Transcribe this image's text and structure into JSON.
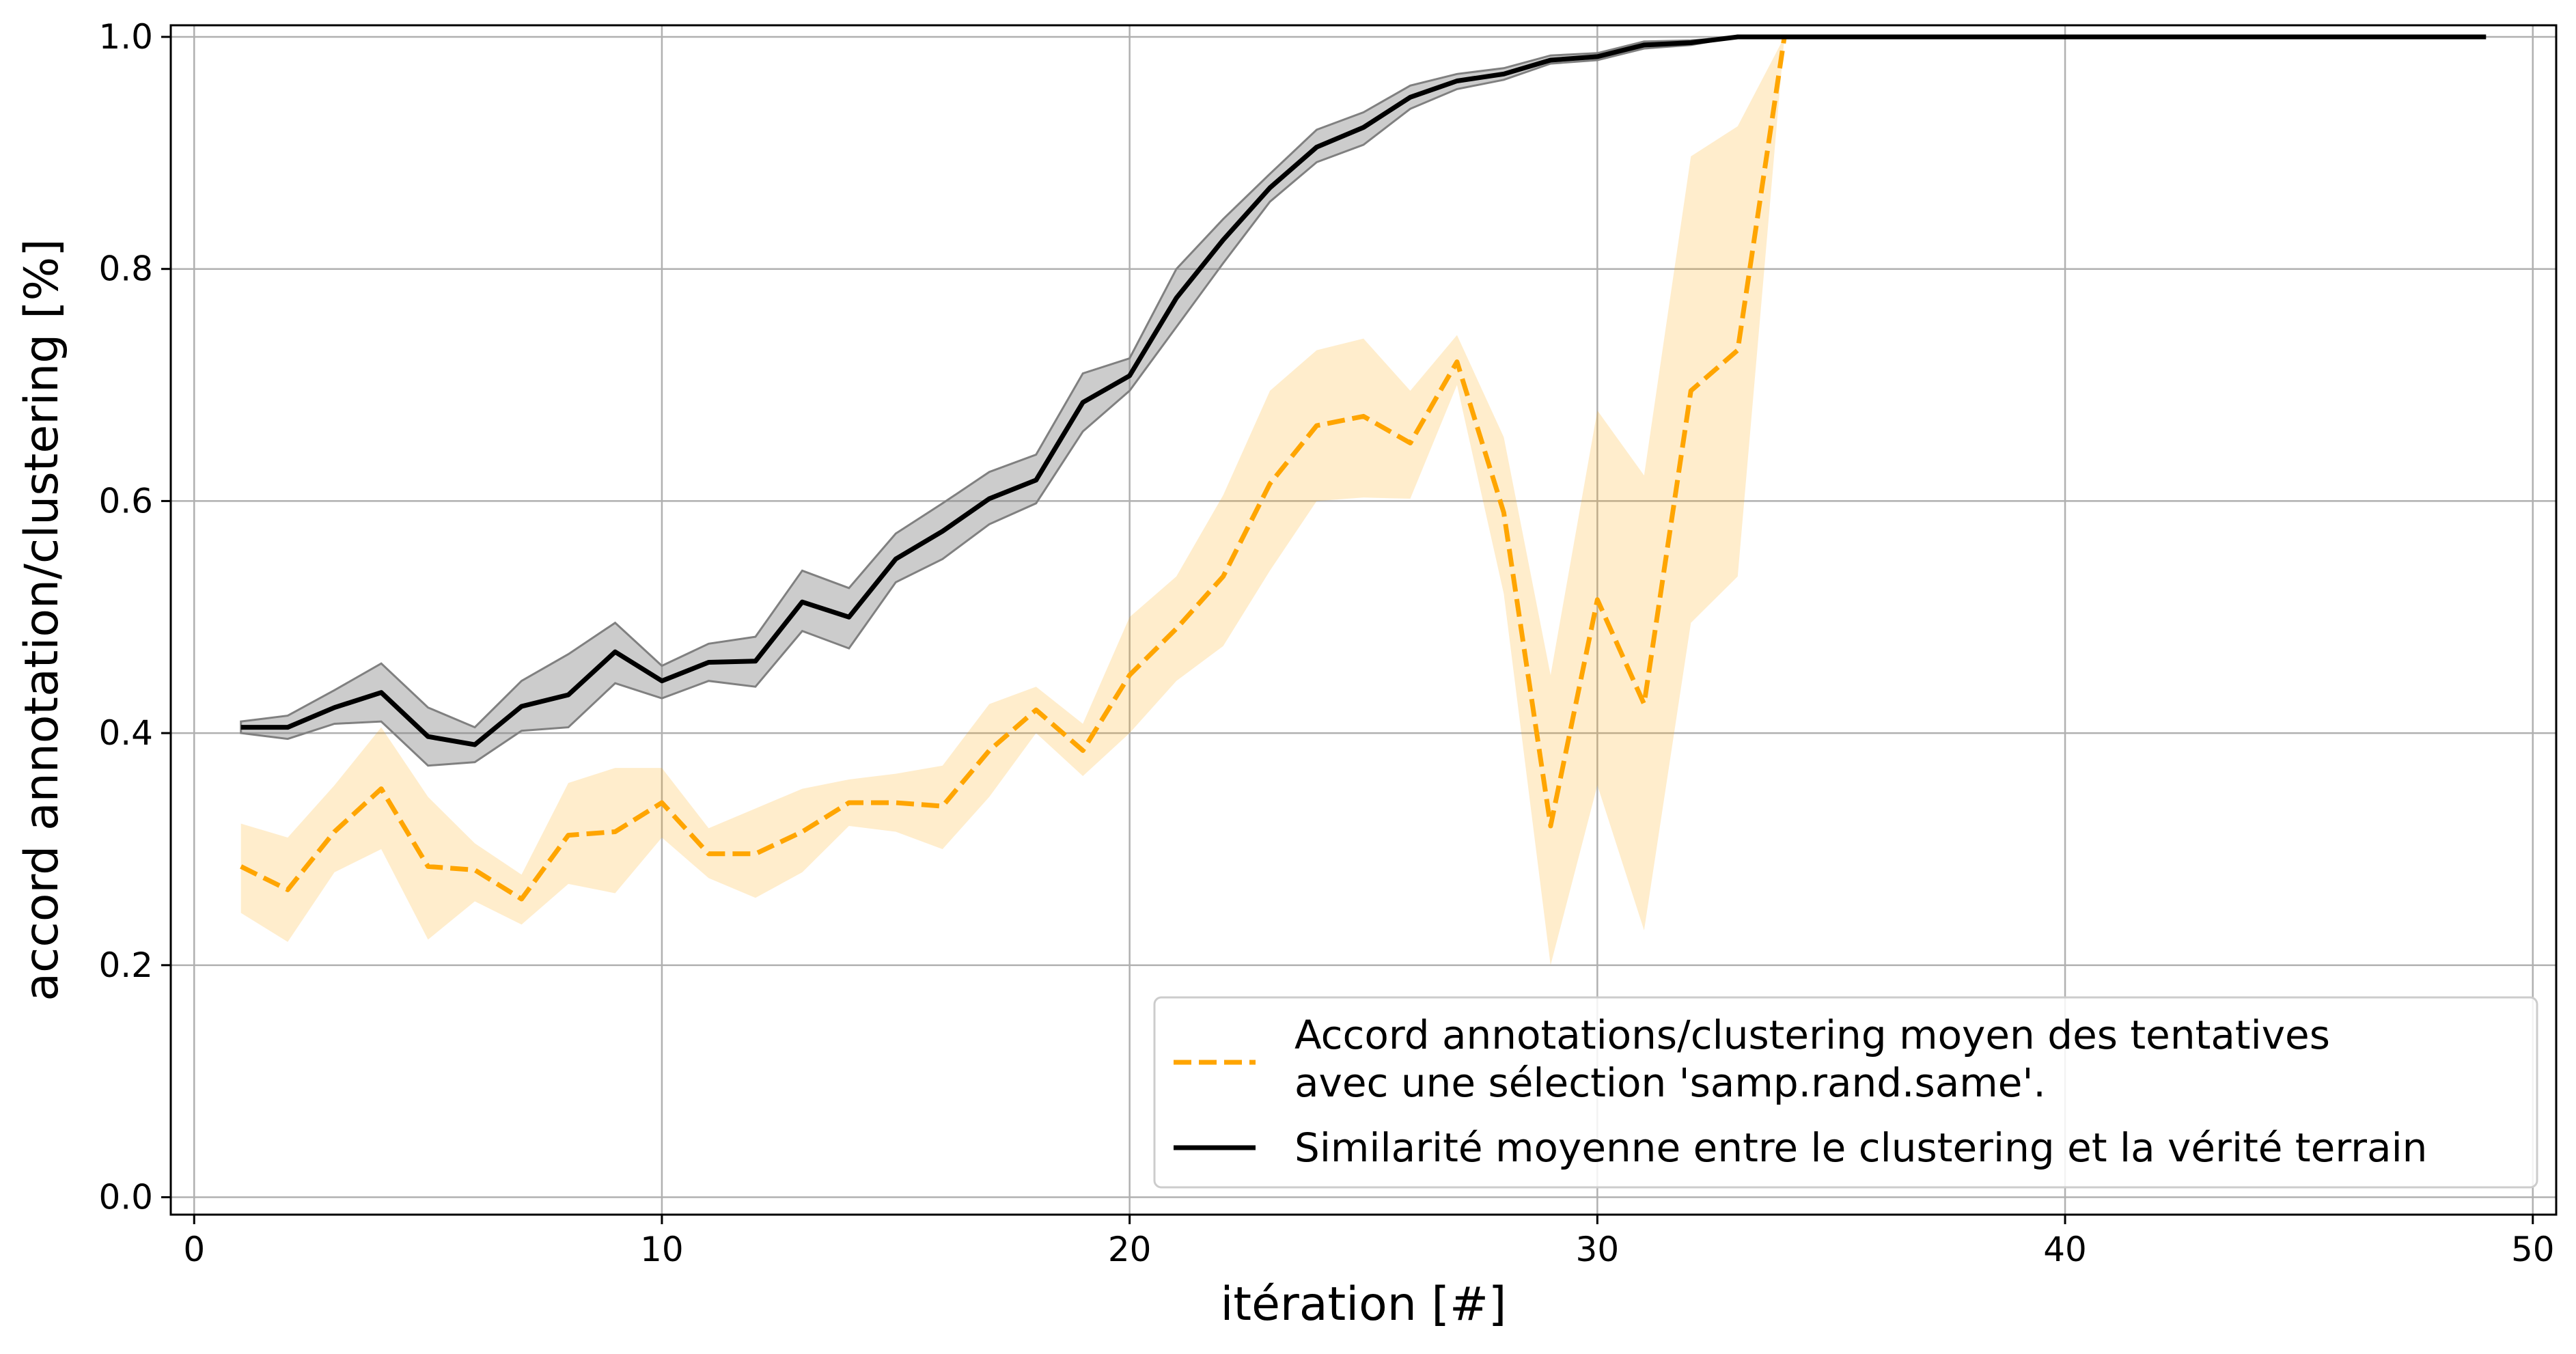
{
  "chart_data": {
    "type": "line",
    "title": "",
    "xlabel": "itération [#]",
    "ylabel": "accord annotation/clustering [%]",
    "xlim": [
      -0.5,
      50.5
    ],
    "ylim": [
      -0.015,
      1.01
    ],
    "xticks": [
      0,
      10,
      20,
      30,
      40,
      50
    ],
    "xtick_labels": [
      "0",
      "10",
      "20",
      "30",
      "40",
      "50"
    ],
    "yticks": [
      0.0,
      0.2,
      0.4,
      0.6,
      0.8,
      1.0
    ],
    "ytick_labels": [
      "0.0",
      "0.2",
      "0.4",
      "0.6",
      "0.8",
      "1.0"
    ],
    "grid": true,
    "legend_position": "bottom-right",
    "series": [
      {
        "name": "Accord annotations/clustering moyen des tentatives\navec une sélection 'samp.rand.same'.",
        "color": "#ffa500",
        "band_color": "#ffa500",
        "style": "dashed",
        "x": [
          1,
          2,
          3,
          4,
          5,
          6,
          7,
          8,
          9,
          10,
          11,
          12,
          13,
          14,
          15,
          16,
          17,
          18,
          19,
          20,
          21,
          22,
          23,
          24,
          25,
          26,
          27,
          28,
          29,
          30,
          31,
          32,
          33,
          34
        ],
        "y": [
          0.285,
          0.265,
          0.315,
          0.352,
          0.285,
          0.282,
          0.257,
          0.312,
          0.315,
          0.34,
          0.296,
          0.296,
          0.315,
          0.34,
          0.34,
          0.337,
          0.385,
          0.42,
          0.385,
          0.45,
          0.49,
          0.535,
          0.615,
          0.665,
          0.673,
          0.65,
          0.72,
          0.59,
          0.32,
          0.515,
          0.425,
          0.695,
          0.73,
          1.0
        ],
        "y_lower": [
          0.245,
          0.22,
          0.28,
          0.3,
          0.222,
          0.255,
          0.235,
          0.27,
          0.262,
          0.31,
          0.275,
          0.258,
          0.28,
          0.32,
          0.315,
          0.3,
          0.345,
          0.4,
          0.363,
          0.4,
          0.445,
          0.475,
          0.54,
          0.6,
          0.603,
          0.602,
          0.7,
          0.52,
          0.2,
          0.355,
          0.23,
          0.495,
          0.535,
          1.0
        ],
        "y_upper": [
          0.322,
          0.31,
          0.355,
          0.405,
          0.345,
          0.305,
          0.278,
          0.357,
          0.37,
          0.37,
          0.318,
          0.335,
          0.352,
          0.36,
          0.365,
          0.372,
          0.425,
          0.44,
          0.408,
          0.5,
          0.535,
          0.605,
          0.695,
          0.73,
          0.74,
          0.695,
          0.743,
          0.655,
          0.45,
          0.678,
          0.622,
          0.897,
          0.923,
          1.0
        ]
      },
      {
        "name": "Similarité moyenne entre le clustering et la vérité terrain",
        "color": "#000000",
        "band_color": "#808080",
        "style": "solid",
        "x": [
          1,
          2,
          3,
          4,
          5,
          6,
          7,
          8,
          9,
          10,
          11,
          12,
          13,
          14,
          15,
          16,
          17,
          18,
          19,
          20,
          21,
          22,
          23,
          24,
          25,
          26,
          27,
          28,
          29,
          30,
          31,
          32,
          33,
          34,
          35,
          36,
          37,
          38,
          39,
          40,
          41,
          42,
          43,
          44,
          45,
          46,
          47,
          48,
          49
        ],
        "y": [
          0.405,
          0.405,
          0.422,
          0.435,
          0.397,
          0.39,
          0.423,
          0.433,
          0.47,
          0.445,
          0.461,
          0.462,
          0.513,
          0.5,
          0.55,
          0.574,
          0.602,
          0.618,
          0.685,
          0.708,
          0.775,
          0.825,
          0.87,
          0.905,
          0.922,
          0.948,
          0.962,
          0.968,
          0.98,
          0.983,
          0.993,
          0.995,
          1.0,
          1.0,
          1.0,
          1.0,
          1.0,
          1.0,
          1.0,
          1.0,
          1.0,
          1.0,
          1.0,
          1.0,
          1.0,
          1.0,
          1.0,
          1.0,
          1.0
        ],
        "y_lower": [
          0.4,
          0.395,
          0.408,
          0.41,
          0.372,
          0.375,
          0.402,
          0.405,
          0.443,
          0.43,
          0.445,
          0.44,
          0.488,
          0.473,
          0.53,
          0.55,
          0.58,
          0.598,
          0.66,
          0.695,
          0.75,
          0.805,
          0.858,
          0.892,
          0.907,
          0.938,
          0.955,
          0.963,
          0.977,
          0.98,
          0.99,
          0.993,
          1.0,
          1.0,
          1.0,
          1.0,
          1.0,
          1.0,
          1.0,
          1.0,
          1.0,
          1.0,
          1.0,
          1.0,
          1.0,
          1.0,
          1.0,
          1.0,
          1.0
        ],
        "y_upper": [
          0.41,
          0.415,
          0.437,
          0.46,
          0.422,
          0.405,
          0.445,
          0.468,
          0.495,
          0.458,
          0.477,
          0.483,
          0.54,
          0.525,
          0.572,
          0.598,
          0.625,
          0.64,
          0.71,
          0.723,
          0.8,
          0.843,
          0.882,
          0.92,
          0.935,
          0.958,
          0.968,
          0.973,
          0.984,
          0.986,
          0.996,
          0.997,
          1.0,
          1.0,
          1.0,
          1.0,
          1.0,
          1.0,
          1.0,
          1.0,
          1.0,
          1.0,
          1.0,
          1.0,
          1.0,
          1.0,
          1.0,
          1.0,
          1.0
        ]
      }
    ]
  }
}
